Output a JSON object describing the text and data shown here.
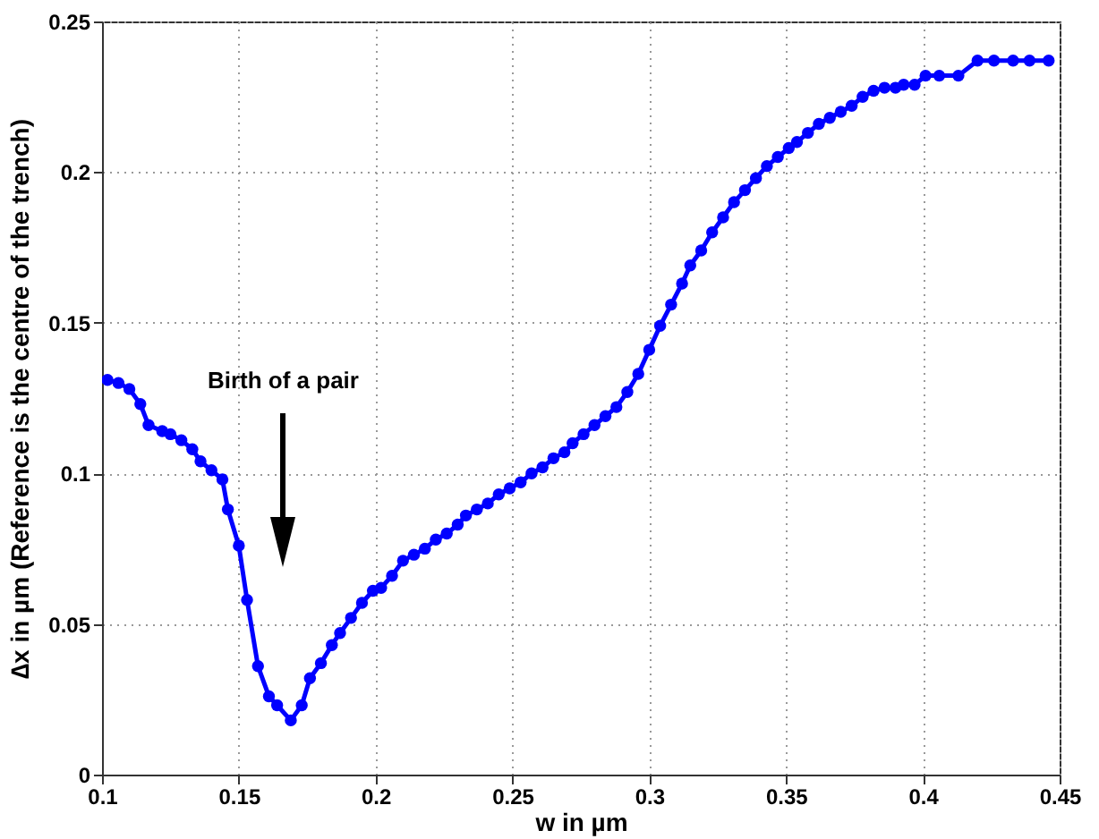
{
  "chart_data": {
    "type": "line",
    "xlabel": "w in µm",
    "ylabel": "∆x in µm (Reference is the centre of the trench)",
    "annotations": [
      "Birth of a pair"
    ],
    "x": [
      0.102,
      0.106,
      0.11,
      0.114,
      0.117,
      0.122,
      0.125,
      0.129,
      0.133,
      0.136,
      0.14,
      0.144,
      0.146,
      0.15,
      0.153,
      0.157,
      0.161,
      0.164,
      0.169,
      0.173,
      0.176,
      0.18,
      0.184,
      0.187,
      0.191,
      0.195,
      0.199,
      0.202,
      0.206,
      0.21,
      0.214,
      0.218,
      0.222,
      0.226,
      0.23,
      0.233,
      0.237,
      0.241,
      0.245,
      0.249,
      0.253,
      0.257,
      0.261,
      0.265,
      0.269,
      0.272,
      0.276,
      0.28,
      0.284,
      0.288,
      0.292,
      0.296,
      0.3,
      0.304,
      0.308,
      0.312,
      0.315,
      0.319,
      0.323,
      0.327,
      0.331,
      0.335,
      0.339,
      0.343,
      0.347,
      0.351,
      0.354,
      0.358,
      0.362,
      0.366,
      0.37,
      0.374,
      0.378,
      0.382,
      0.386,
      0.39,
      0.393,
      0.397,
      0.401,
      0.406,
      0.413,
      0.42,
      0.426,
      0.433,
      0.439,
      0.446
    ],
    "series": [
      {
        "color": "#0000ff",
        "values": [
          0.131,
          0.13,
          0.128,
          0.123,
          0.116,
          0.114,
          0.113,
          0.111,
          0.108,
          0.104,
          0.101,
          0.098,
          0.088,
          0.076,
          0.058,
          0.036,
          0.026,
          0.023,
          0.018,
          0.023,
          0.032,
          0.037,
          0.043,
          0.047,
          0.052,
          0.057,
          0.061,
          0.062,
          0.066,
          0.071,
          0.073,
          0.075,
          0.078,
          0.08,
          0.083,
          0.086,
          0.088,
          0.09,
          0.093,
          0.095,
          0.097,
          0.1,
          0.102,
          0.105,
          0.107,
          0.11,
          0.113,
          0.116,
          0.119,
          0.122,
          0.127,
          0.133,
          0.141,
          0.149,
          0.156,
          0.163,
          0.169,
          0.174,
          0.18,
          0.185,
          0.19,
          0.194,
          0.198,
          0.202,
          0.205,
          0.208,
          0.21,
          0.213,
          0.216,
          0.218,
          0.22,
          0.222,
          0.225,
          0.227,
          0.228,
          0.228,
          0.229,
          0.229,
          0.232,
          0.232,
          0.232,
          0.237,
          0.237,
          0.237,
          0.237,
          0.237
        ]
      }
    ],
    "xlim": [
      0.1,
      0.45
    ],
    "xticks": [
      0.1,
      0.15,
      0.2,
      0.25,
      0.3,
      0.35,
      0.4,
      0.45
    ],
    "ylim": [
      0,
      0.25
    ],
    "yticks": [
      0,
      0.05,
      0.1,
      0.15,
      0.2,
      0.25
    ],
    "grid": true,
    "marker": "circle",
    "line_style": "solid"
  }
}
